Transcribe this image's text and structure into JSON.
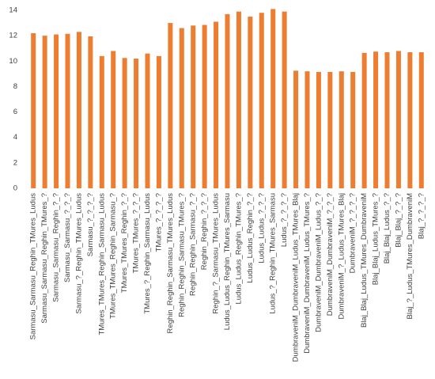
{
  "chart_data": {
    "type": "bar",
    "categories": [
      "Sarmasu_Sarmasu_Reghin_TMures_Ludus",
      "Sarmasu_Sarmasu_Reghin_TMures_?",
      "Sarmasu_Sarmasu_Reghin_?_?",
      "Sarmasu_Sarmasu_?_?_?",
      "Sarmasu_?_Reghin_TMures_Ludus",
      "Sarmasu_?_?_?_?",
      "TMures_TMures_Reghin_Sarmasu_Ludus",
      "TMures_TMures_Reghin_Sarmasu_?",
      "TMures_TMures_Reghin_?_?",
      "TMures_TMures_?_?_?",
      "TMures_?_Reghin_Sarmasu_Ludus",
      "TMures_?_?_?_?",
      "Reghin_Reghin_Sarmasu_TMures_Ludus",
      "Reghin_Reghin_Sarmasu_TMures_?",
      "Reghin_Reghin_Sarmasu_?_?",
      "Reghin_Reghin_?_?_?",
      "Reghin_?_Sarmasu_TMures_Ludus",
      "Ludus_Ludus_Reghin_TMures_Sarmasu",
      "Ludus_Ludus_Reghin_TMures_?",
      "Ludus_Ludus_Reghin_?_?",
      "Ludus_Ludus_?_?_?",
      "Ludus_?_Reghin_TMures_Sarmasu",
      "Ludus_?_?_?_?",
      "DumbraveniM_DumbraveniM_Ludus_TMures_Blaj",
      "DumbraveniM_DumbraveniM_Ludus_TMures_?",
      "DumbraveniM_DumbraveniM_Ludus_?_?",
      "DumbraveniM_DumbraveniM_?_?_?",
      "DumbraveniM_?_Ludus_TMures_Blaj",
      "DumbraveniM_?_?_?_?",
      "Blaj_Blaj_Ludus_TMures_DumbraveniM",
      "Blaj_Blaj_Ludus_TMures_?",
      "Blaj_Blaj_Ludus_?_?",
      "Blaj_Blaj_?_?_?",
      "Blaj_?_Ludus_TMures_DumbraveniM",
      "Blaj_?_?_?_?"
    ],
    "values": [
      12.2,
      12.0,
      12.1,
      12.15,
      12.3,
      11.95,
      10.4,
      10.8,
      10.25,
      10.2,
      10.6,
      10.4,
      13.0,
      12.6,
      12.8,
      12.85,
      13.1,
      13.7,
      13.9,
      13.5,
      13.8,
      14.1,
      13.9,
      9.25,
      9.2,
      9.15,
      9.15,
      9.2,
      9.15,
      10.65,
      10.75,
      10.7,
      10.8,
      10.7,
      10.7
    ],
    "color": "#ed7d31",
    "ylim": [
      0,
      14
    ],
    "yticks": [
      0,
      2,
      4,
      6,
      8,
      10,
      12,
      14
    ],
    "grid": false
  }
}
